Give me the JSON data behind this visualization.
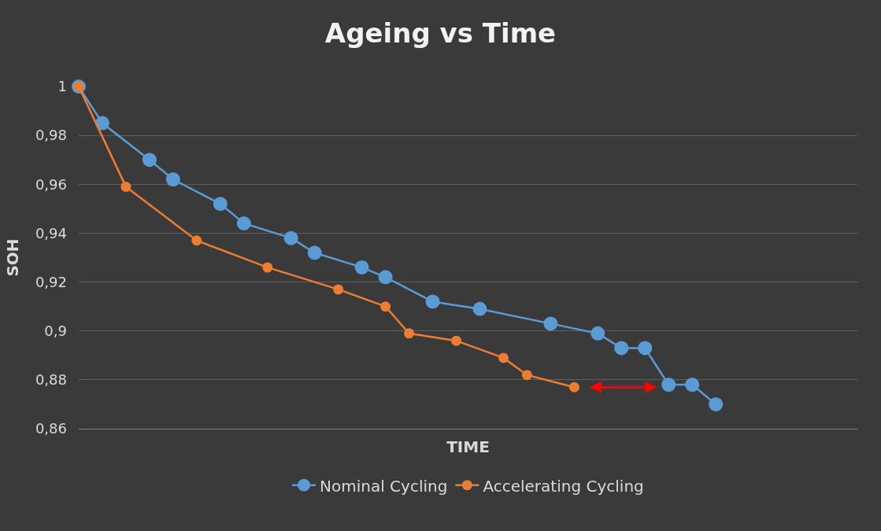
{
  "chart_data": {
    "type": "line",
    "title": "Ageing vs Time",
    "xlabel": "TIME",
    "ylabel": "SOH",
    "categories": [
      null,
      null,
      null,
      null,
      null,
      null,
      null,
      null,
      null,
      null,
      null,
      null,
      null,
      null,
      null,
      null,
      null,
      null,
      null,
      null,
      null,
      null,
      null,
      null,
      null,
      null,
      null,
      null,
      null,
      null,
      null,
      null,
      null,
      null
    ],
    "ylim": [
      0.86,
      1
    ],
    "yticks": [
      {
        "value": 0.86,
        "label": "0,86"
      },
      {
        "value": 0.88,
        "label": "0,88"
      },
      {
        "value": 0.9,
        "label": "0,9"
      },
      {
        "value": 0.92,
        "label": "0,92"
      },
      {
        "value": 0.94,
        "label": "0,94"
      },
      {
        "value": 0.96,
        "label": "0,96"
      },
      {
        "value": 0.98,
        "label": "0,98"
      },
      {
        "value": 1,
        "label": "1"
      }
    ],
    "tick_labels": "y",
    "grid": "y",
    "legend": "bottom",
    "marker": "circle",
    "line_style": "solid",
    "series": [
      {
        "name": "Nominal Cycling",
        "color": "#5b9bd5",
        "values": [
          1,
          0.985,
          null,
          0.97,
          0.962,
          null,
          0.952,
          0.944,
          null,
          0.938,
          0.932,
          null,
          0.926,
          0.922,
          null,
          0.912,
          null,
          0.909,
          null,
          null,
          0.903,
          null,
          0.899,
          0.893,
          0.893,
          0.878,
          0.878,
          0.87,
          null,
          null,
          null,
          null,
          null,
          null
        ]
      },
      {
        "name": "Accelerating Cycling",
        "color": "#ed7d31",
        "values": [
          1,
          null,
          0.959,
          null,
          null,
          0.937,
          null,
          null,
          0.926,
          null,
          null,
          0.917,
          null,
          0.91,
          0.899,
          null,
          0.896,
          null,
          0.889,
          0.882,
          null,
          0.877,
          null,
          null,
          null,
          null,
          null,
          null,
          null,
          null,
          null,
          null,
          null,
          null
        ]
      }
    ]
  }
}
